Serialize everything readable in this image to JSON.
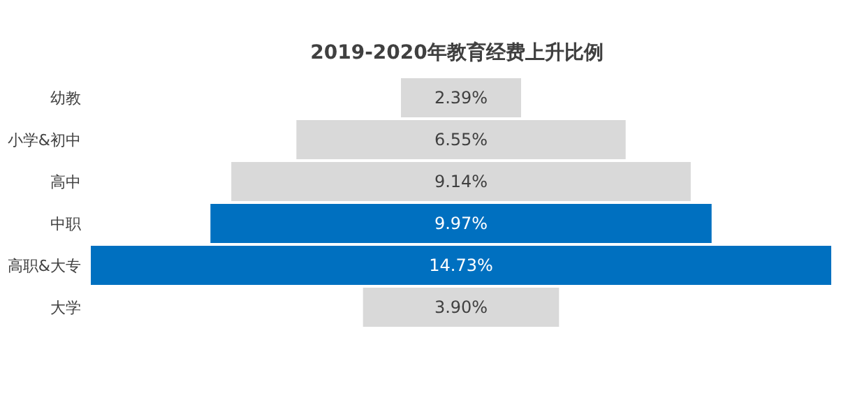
{
  "chart_data": {
    "type": "other",
    "title": "2019-2020年教育经费上升比例",
    "categories": [
      "幼教",
      "小学&初中",
      "高中",
      "中职",
      "高职&大专",
      "大学"
    ],
    "values": [
      2.39,
      6.55,
      9.14,
      9.97,
      14.73,
      3.9
    ],
    "value_labels": [
      "2.39%",
      "6.55%",
      "9.14%",
      "9.97%",
      "14.73%",
      "3.90%"
    ],
    "colors": [
      "#d9d9d9",
      "#d9d9d9",
      "#d9d9d9",
      "#0070c0",
      "#0070c0",
      "#d9d9d9"
    ]
  }
}
